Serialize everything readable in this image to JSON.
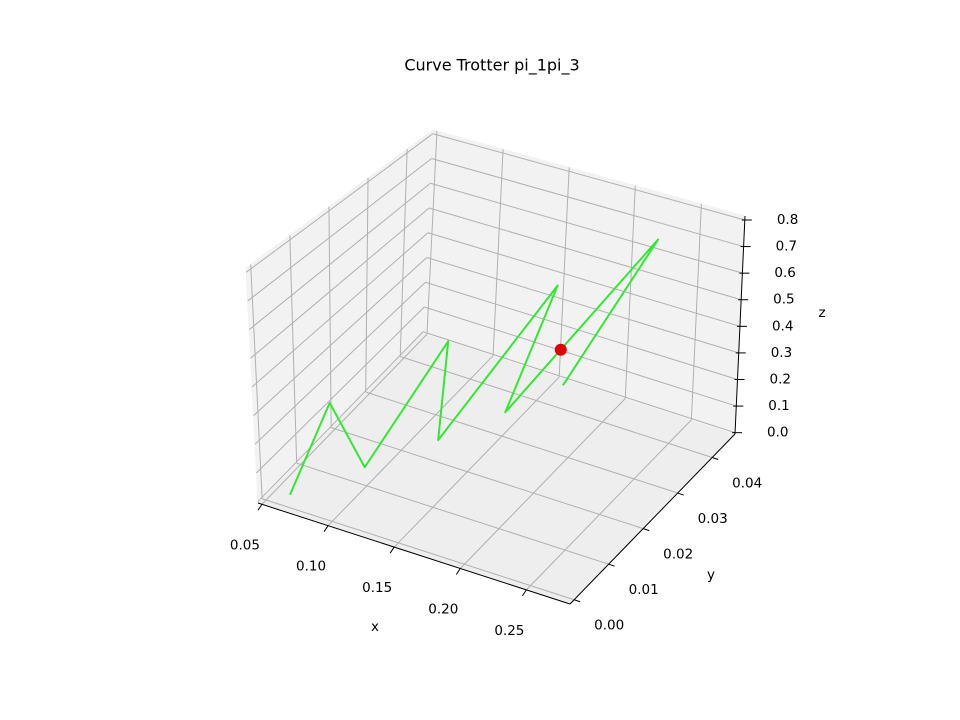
{
  "chart_data": {
    "type": "line3d",
    "title": "Curve Trotter pi_1pi_3",
    "xlabel": "x",
    "ylabel": "y",
    "zlabel": "z",
    "xlim": [
      0.047,
      0.283
    ],
    "ylim": [
      -0.0012,
      0.0466
    ],
    "zlim": [
      -0.005,
      0.815
    ],
    "xticks": [
      0.05,
      {
        "value": 0.1,
        "label": "0.10"
      },
      0.15,
      {
        "value": 0.2,
        "label": "0.20"
      },
      0.25
    ],
    "yticks": [
      {
        "value": 0,
        "label": "0.00"
      },
      0.01,
      0.02,
      0.03,
      0.04
    ],
    "zticks": [
      {
        "value": 0,
        "label": "0.0"
      },
      0.1,
      0.2,
      0.3,
      0.4,
      0.5,
      0.6,
      0.7,
      0.8
    ],
    "grid": true,
    "series": [
      {
        "mode": "line",
        "color": "#33e833",
        "x": [
          0.0635,
          0.081,
          0.091,
          0.141,
          0.118,
          0.194,
          0.141,
          0.239,
          0.159
        ],
        "y": [
          0.0018,
          0.0074,
          0.0129,
          0.0184,
          0.0238,
          0.0289,
          0.0344,
          0.0394,
          0.0442
        ],
        "z": [
          0.011,
          0.293,
          0.011,
          0.471,
          0.011,
          0.629,
          0.011,
          0.745,
          0.011
        ]
      },
      {
        "mode": "marker",
        "color": "#e00000",
        "x": [
          0.177
        ],
        "y": [
          0.0362
        ],
        "z": [
          0.28
        ]
      }
    ]
  }
}
